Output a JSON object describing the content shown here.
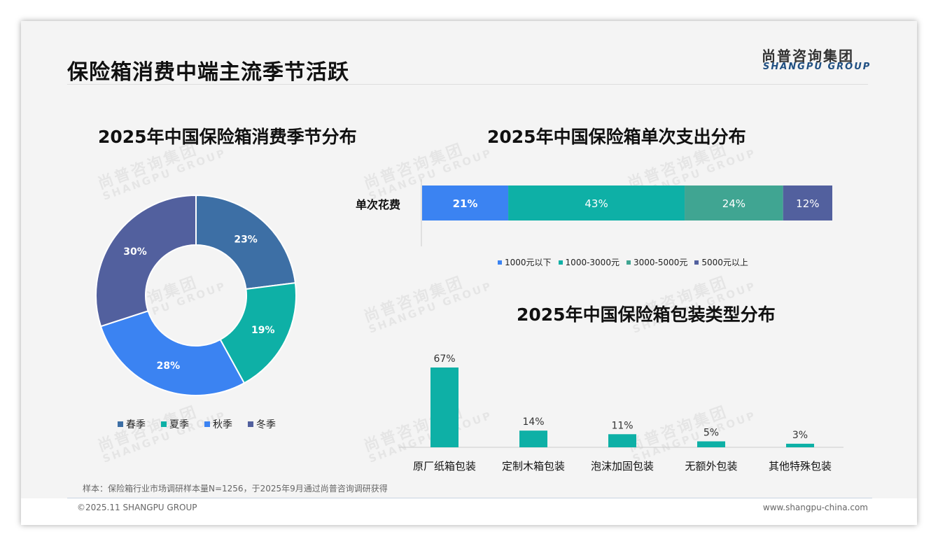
{
  "header": {
    "title": "保险箱消费中端主流季节活跃",
    "logo_cn": "尚普咨询集团",
    "logo_en": "SHANGPU GROUP"
  },
  "watermark": {
    "cn": "尚普咨询集团",
    "en": "SHANGPU GROUP"
  },
  "colors": {
    "spring": "#3d6fa5",
    "summer": "#0eb0a6",
    "autumn": "#3b83f2",
    "winter": "#52609e",
    "s1000": "#3b83f2",
    "s1000_3000": "#0eb0a6",
    "s3000_5000": "#40a592",
    "s5000": "#52609e",
    "bar": "#0eb0a6"
  },
  "chart_data": [
    {
      "type": "pie",
      "title": "2025年中国保险箱消费季节分布",
      "donut": true,
      "categories": [
        "春季",
        "夏季",
        "秋季",
        "冬季"
      ],
      "values": [
        23,
        19,
        28,
        30
      ],
      "labels": [
        "23%",
        "19%",
        "28%",
        "30%"
      ],
      "legend": "bottom"
    },
    {
      "type": "bar",
      "stacked": true,
      "orientation": "horizontal",
      "title": "2025年中国保险箱单次支出分布",
      "categories": [
        "单次花费"
      ],
      "series": [
        {
          "name": "1000元以下",
          "values": [
            21
          ],
          "label": "21%"
        },
        {
          "name": "1000-3000元",
          "values": [
            43
          ],
          "label": "43%"
        },
        {
          "name": "3000-5000元",
          "values": [
            24
          ],
          "label": "24%"
        },
        {
          "name": "5000元以上",
          "values": [
            12
          ],
          "label": "12%"
        }
      ],
      "legend": "bottom"
    },
    {
      "type": "bar",
      "title": "2025年中国保险箱包装类型分布",
      "categories": [
        "原厂纸箱包装",
        "定制木箱包装",
        "泡沫加固包装",
        "无额外包装",
        "其他特殊包装"
      ],
      "values": [
        67,
        14,
        11,
        5,
        3
      ],
      "labels": [
        "67%",
        "14%",
        "11%",
        "5%",
        "3%"
      ]
    }
  ],
  "footer": {
    "sample_note": "样本：保险箱行业市场调研样本量N=1256，于2025年9月通过尚普咨询调研获得",
    "copyright": "©2025.11 SHANGPU GROUP",
    "website": "www.shangpu-china.com"
  }
}
